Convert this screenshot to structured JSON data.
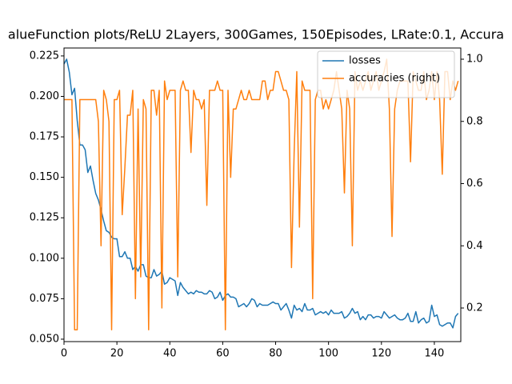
{
  "chart_data": {
    "type": "line",
    "title": "alueFunction plots/ReLU 2Layers, 300Games, 150Episodes, LRate:0.1, Accura",
    "x": [
      0,
      1,
      2,
      3,
      4,
      5,
      6,
      7,
      8,
      9,
      10,
      11,
      12,
      13,
      14,
      15,
      16,
      17,
      18,
      19,
      20,
      21,
      22,
      23,
      24,
      25,
      26,
      27,
      28,
      29,
      30,
      31,
      32,
      33,
      34,
      35,
      36,
      37,
      38,
      39,
      40,
      41,
      42,
      43,
      44,
      45,
      46,
      47,
      48,
      49,
      50,
      51,
      52,
      53,
      54,
      55,
      56,
      57,
      58,
      59,
      60,
      61,
      62,
      63,
      64,
      65,
      66,
      67,
      68,
      69,
      70,
      71,
      72,
      73,
      74,
      75,
      76,
      77,
      78,
      79,
      80,
      81,
      82,
      83,
      84,
      85,
      86,
      87,
      88,
      89,
      90,
      91,
      92,
      93,
      94,
      95,
      96,
      97,
      98,
      99,
      100,
      101,
      102,
      103,
      104,
      105,
      106,
      107,
      108,
      109,
      110,
      111,
      112,
      113,
      114,
      115,
      116,
      117,
      118,
      119,
      120,
      121,
      122,
      123,
      124,
      125,
      126,
      127,
      128,
      129,
      130,
      131,
      132,
      133,
      134,
      135,
      136,
      137,
      138,
      139,
      140,
      141,
      142,
      143,
      144,
      145,
      146,
      147,
      148,
      149
    ],
    "series": [
      {
        "name": "losses",
        "color": "#1f77b4",
        "values": [
          0.22,
          0.223,
          0.215,
          0.201,
          0.205,
          0.185,
          0.17,
          0.17,
          0.167,
          0.153,
          0.157,
          0.148,
          0.14,
          0.136,
          0.13,
          0.123,
          0.117,
          0.116,
          0.113,
          0.112,
          0.112,
          0.101,
          0.101,
          0.104,
          0.1,
          0.1,
          0.093,
          0.095,
          0.092,
          0.096,
          0.096,
          0.089,
          0.088,
          0.088,
          0.093,
          0.089,
          0.09,
          0.092,
          0.084,
          0.085,
          0.088,
          0.087,
          0.086,
          0.077,
          0.085,
          0.082,
          0.08,
          0.078,
          0.079,
          0.078,
          0.08,
          0.079,
          0.079,
          0.078,
          0.078,
          0.08,
          0.079,
          0.075,
          0.076,
          0.079,
          0.074,
          0.077,
          0.078,
          0.076,
          0.076,
          0.075,
          0.07,
          0.071,
          0.072,
          0.07,
          0.072,
          0.075,
          0.074,
          0.07,
          0.072,
          0.071,
          0.071,
          0.071,
          0.072,
          0.073,
          0.072,
          0.072,
          0.068,
          0.07,
          0.072,
          0.068,
          0.063,
          0.071,
          0.068,
          0.069,
          0.067,
          0.072,
          0.068,
          0.068,
          0.069,
          0.065,
          0.066,
          0.067,
          0.066,
          0.067,
          0.065,
          0.068,
          0.066,
          0.066,
          0.066,
          0.067,
          0.063,
          0.064,
          0.066,
          0.069,
          0.066,
          0.067,
          0.062,
          0.064,
          0.062,
          0.065,
          0.065,
          0.063,
          0.064,
          0.064,
          0.063,
          0.067,
          0.065,
          0.063,
          0.064,
          0.065,
          0.063,
          0.062,
          0.062,
          0.063,
          0.066,
          0.061,
          0.061,
          0.067,
          0.06,
          0.062,
          0.063,
          0.06,
          0.061,
          0.071,
          0.064,
          0.065,
          0.059,
          0.058,
          0.059,
          0.06,
          0.06,
          0.057,
          0.064,
          0.066
        ]
      },
      {
        "name": "accuracies (right)",
        "color": "#ff7f0e",
        "axis": "y2",
        "values": [
          0.87,
          0.87,
          0.87,
          0.87,
          0.13,
          0.13,
          0.87,
          0.87,
          0.87,
          0.87,
          0.87,
          0.87,
          0.87,
          0.8,
          0.4,
          0.9,
          0.87,
          0.8,
          0.13,
          0.87,
          0.87,
          0.9,
          0.5,
          0.65,
          0.82,
          0.82,
          0.9,
          0.23,
          0.84,
          0.3,
          0.87,
          0.84,
          0.13,
          0.9,
          0.9,
          0.82,
          0.9,
          0.2,
          0.93,
          0.87,
          0.9,
          0.9,
          0.9,
          0.3,
          0.9,
          0.93,
          0.9,
          0.9,
          0.7,
          0.9,
          0.87,
          0.87,
          0.84,
          0.87,
          0.53,
          0.9,
          0.9,
          0.9,
          0.93,
          0.9,
          0.9,
          0.13,
          0.9,
          0.62,
          0.84,
          0.84,
          0.87,
          0.9,
          0.87,
          0.87,
          0.9,
          0.87,
          0.87,
          0.87,
          0.87,
          0.93,
          0.93,
          0.87,
          0.9,
          0.9,
          0.96,
          0.96,
          0.93,
          0.9,
          0.9,
          0.87,
          0.33,
          0.7,
          0.96,
          0.46,
          0.93,
          0.9,
          0.9,
          0.9,
          0.23,
          0.87,
          0.9,
          0.9,
          0.84,
          0.87,
          0.84,
          0.87,
          0.9,
          0.96,
          0.9,
          0.84,
          0.57,
          0.9,
          0.84,
          0.4,
          0.96,
          0.9,
          0.93,
          0.9,
          0.93,
          0.96,
          0.9,
          0.93,
          0.96,
          0.9,
          0.93,
          0.96,
          1.0,
          0.84,
          0.43,
          0.84,
          0.9,
          0.93,
          0.93,
          0.93,
          0.93,
          0.67,
          0.96,
          0.93,
          0.9,
          0.9,
          0.96,
          0.87,
          0.9,
          0.96,
          0.87,
          0.96,
          0.87,
          0.63,
          0.96,
          0.96,
          0.87,
          0.93,
          0.9,
          0.93
        ]
      }
    ],
    "xlim": [
      0,
      150
    ],
    "xticks": [
      0,
      20,
      40,
      60,
      80,
      100,
      120,
      140
    ],
    "ylim": [
      0.0485,
      0.2299
    ],
    "yticks": [
      {
        "value": 0.05,
        "label": "0.050"
      },
      {
        "value": 0.075,
        "label": "0.075"
      },
      {
        "value": 0.1,
        "label": "0.100"
      },
      {
        "value": 0.125,
        "label": "0.125"
      },
      {
        "value": 0.15,
        "label": "0.150"
      },
      {
        "value": 0.175,
        "label": "0.175"
      },
      {
        "value": 0.2,
        "label": "0.200"
      },
      {
        "value": 0.225,
        "label": "0.225"
      }
    ],
    "y2lim": [
      0.092,
      1.036
    ],
    "y2ticks": [
      0.2,
      0.4,
      0.6,
      0.8,
      {
        "value": 1,
        "label": "1.0"
      }
    ],
    "legend": "upper right",
    "grid": false
  }
}
